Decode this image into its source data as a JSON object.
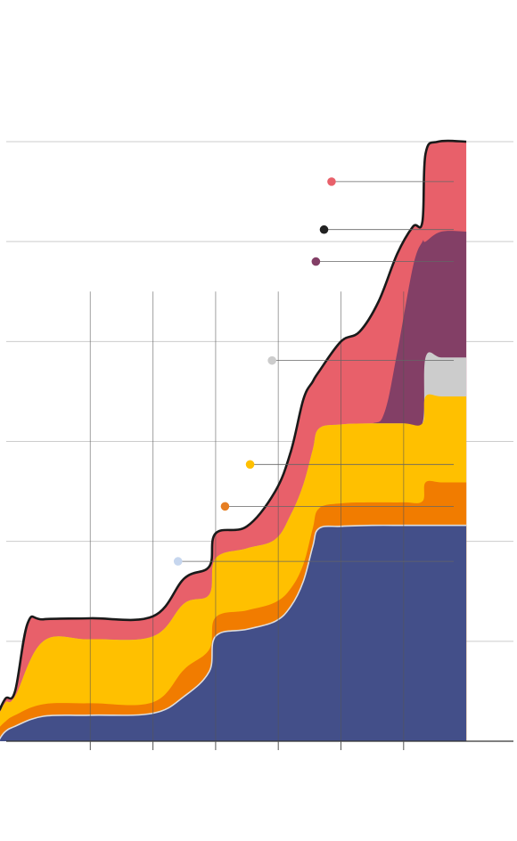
{
  "chart_data": {
    "type": "area",
    "stacked": true,
    "title": "",
    "xlabel": "",
    "ylabel": "",
    "ylim": [
      0,
      6
    ],
    "xlim": [
      0,
      7
    ],
    "grid": true,
    "legend": "none",
    "series": [
      {
        "name": "",
        "color": "#434f89",
        "edge": "#dddddd",
        "points": [
          [
            -0.45,
            0
          ],
          [
            -0.45,
            0.02
          ],
          [
            -0.35,
            0.1
          ],
          [
            -0.2,
            0.15
          ],
          [
            0.25,
            0.25
          ],
          [
            1.0,
            0.26
          ],
          [
            2.0,
            0.28
          ],
          [
            2.5,
            0.45
          ],
          [
            2.9,
            0.7
          ],
          [
            3.0,
            1.05
          ],
          [
            3.5,
            1.12
          ],
          [
            3.95,
            1.2
          ],
          [
            4.2,
            1.35
          ],
          [
            4.4,
            1.6
          ],
          [
            4.55,
            1.95
          ],
          [
            4.65,
            2.13
          ],
          [
            5.0,
            2.15
          ],
          [
            5.5,
            2.16
          ],
          [
            6.0,
            2.16
          ],
          [
            6.35,
            2.16
          ],
          [
            6.6,
            2.16
          ],
          [
            7.0,
            2.16
          ]
        ]
      },
      {
        "name": "",
        "color": "#f17c00",
        "points": [
          [
            -0.45,
            0.14
          ],
          [
            -0.35,
            0.2
          ],
          [
            -0.2,
            0.26
          ],
          [
            0.25,
            0.37
          ],
          [
            1.0,
            0.38
          ],
          [
            2.0,
            0.39
          ],
          [
            2.5,
            0.72
          ],
          [
            2.9,
            0.92
          ],
          [
            3.0,
            1.24
          ],
          [
            3.5,
            1.31
          ],
          [
            3.95,
            1.39
          ],
          [
            4.2,
            1.53
          ],
          [
            4.4,
            1.77
          ],
          [
            4.55,
            2.13
          ],
          [
            4.65,
            2.33
          ],
          [
            5.0,
            2.38
          ],
          [
            5.5,
            2.39
          ],
          [
            6.0,
            2.39
          ],
          [
            6.3,
            2.4
          ],
          [
            6.35,
            2.59
          ],
          [
            6.6,
            2.59
          ],
          [
            7.0,
            2.59
          ]
        ]
      },
      {
        "name": "",
        "color": "#ffc000",
        "points": [
          [
            -0.45,
            0.28
          ],
          [
            -0.35,
            0.39
          ],
          [
            -0.2,
            0.45
          ],
          [
            0.25,
            1.0
          ],
          [
            1.0,
            1.02
          ],
          [
            2.0,
            1.05
          ],
          [
            2.5,
            1.38
          ],
          [
            2.9,
            1.47
          ],
          [
            3.0,
            1.83
          ],
          [
            3.5,
            1.93
          ],
          [
            3.95,
            2.02
          ],
          [
            4.2,
            2.27
          ],
          [
            4.4,
            2.57
          ],
          [
            4.55,
            2.92
          ],
          [
            4.65,
            3.13
          ],
          [
            5.0,
            3.17
          ],
          [
            5.5,
            3.18
          ],
          [
            6.0,
            3.18
          ],
          [
            6.3,
            3.18
          ],
          [
            6.35,
            3.45
          ],
          [
            6.6,
            3.45
          ],
          [
            7.0,
            3.45
          ]
        ]
      },
      {
        "name": "",
        "color": "#cccccc",
        "points": [
          [
            -0.45,
            0.28
          ],
          [
            -0.35,
            0.39
          ],
          [
            -0.2,
            0.45
          ],
          [
            0.25,
            1.0
          ],
          [
            1.0,
            1.02
          ],
          [
            2.0,
            1.05
          ],
          [
            2.5,
            1.38
          ],
          [
            2.9,
            1.47
          ],
          [
            3.0,
            1.83
          ],
          [
            3.5,
            1.93
          ],
          [
            3.95,
            2.02
          ],
          [
            4.2,
            2.27
          ],
          [
            4.4,
            2.57
          ],
          [
            4.55,
            2.92
          ],
          [
            4.65,
            3.13
          ],
          [
            5.0,
            3.17
          ],
          [
            5.5,
            3.18
          ],
          [
            6.0,
            3.18
          ],
          [
            6.3,
            3.18
          ],
          [
            6.35,
            3.84
          ],
          [
            6.6,
            3.84
          ],
          [
            7.0,
            3.84
          ]
        ]
      },
      {
        "name": "",
        "color": "#833f66",
        "points": [
          [
            -0.45,
            0.28
          ],
          [
            -0.35,
            0.39
          ],
          [
            -0.2,
            0.45
          ],
          [
            0.25,
            1.0
          ],
          [
            1.0,
            1.02
          ],
          [
            2.0,
            1.05
          ],
          [
            2.5,
            1.38
          ],
          [
            2.9,
            1.47
          ],
          [
            3.0,
            1.83
          ],
          [
            3.5,
            1.93
          ],
          [
            3.95,
            2.02
          ],
          [
            4.2,
            2.27
          ],
          [
            4.4,
            2.57
          ],
          [
            4.55,
            2.92
          ],
          [
            4.65,
            3.13
          ],
          [
            5.0,
            3.17
          ],
          [
            5.5,
            3.18
          ],
          [
            5.7,
            3.3
          ],
          [
            5.9,
            3.9
          ],
          [
            6.15,
            4.75
          ],
          [
            6.3,
            5.0
          ],
          [
            6.35,
            5.0
          ],
          [
            6.6,
            5.1
          ],
          [
            7.0,
            5.1
          ]
        ]
      },
      {
        "name": "",
        "color": "#e8606a",
        "points": [
          [
            -0.45,
            0.31
          ],
          [
            -0.35,
            0.43
          ],
          [
            -0.2,
            0.5
          ],
          [
            0.0,
            1.18
          ],
          [
            0.25,
            1.22
          ],
          [
            1.0,
            1.23
          ],
          [
            2.0,
            1.25
          ],
          [
            2.5,
            1.63
          ],
          [
            2.9,
            1.75
          ],
          [
            3.0,
            2.08
          ],
          [
            3.5,
            2.15
          ],
          [
            3.95,
            2.5
          ],
          [
            4.2,
            2.9
          ],
          [
            4.4,
            3.42
          ],
          [
            4.55,
            3.6
          ],
          [
            4.65,
            3.7
          ],
          [
            5.0,
            4.0
          ],
          [
            5.3,
            4.1
          ],
          [
            5.6,
            4.4
          ],
          [
            5.9,
            4.88
          ],
          [
            6.15,
            5.15
          ],
          [
            6.3,
            5.2
          ],
          [
            6.35,
            5.88
          ],
          [
            6.55,
            6.0
          ],
          [
            7.0,
            6.0
          ]
        ]
      }
    ],
    "annotations": [
      {
        "series": 0,
        "x": 6.8,
        "y": 1.8,
        "dot_x": 2.4,
        "dot_y": 1.8,
        "color": "#c6d6ee"
      },
      {
        "series": 1,
        "x": 6.8,
        "y": 2.35,
        "dot_x": 3.15,
        "dot_y": 2.35,
        "color": "#e67e22"
      },
      {
        "series": 2,
        "x": 6.8,
        "y": 2.77,
        "dot_x": 3.55,
        "dot_y": 2.77,
        "color": "#ffc000"
      },
      {
        "series": 3,
        "x": 6.8,
        "y": 3.81,
        "dot_x": 3.9,
        "dot_y": 3.81,
        "color": "#cccccc"
      },
      {
        "series": 4,
        "x": 6.8,
        "y": 4.8,
        "dot_x": 4.6,
        "dot_y": 4.8,
        "color": "#833f66"
      },
      {
        "series": 5,
        "x": 6.8,
        "y": 5.12,
        "dot_x": 4.73,
        "dot_y": 5.12,
        "color": "#222222"
      },
      {
        "series": 5,
        "x": 6.8,
        "y": 5.6,
        "dot_x": 4.85,
        "dot_y": 5.6,
        "color": "#e8606a"
      }
    ],
    "x_ticks": [
      0,
      1,
      2,
      3,
      4,
      5,
      6,
      7
    ],
    "y_gridlines": [
      0,
      1,
      2,
      3,
      4,
      5,
      6
    ]
  }
}
